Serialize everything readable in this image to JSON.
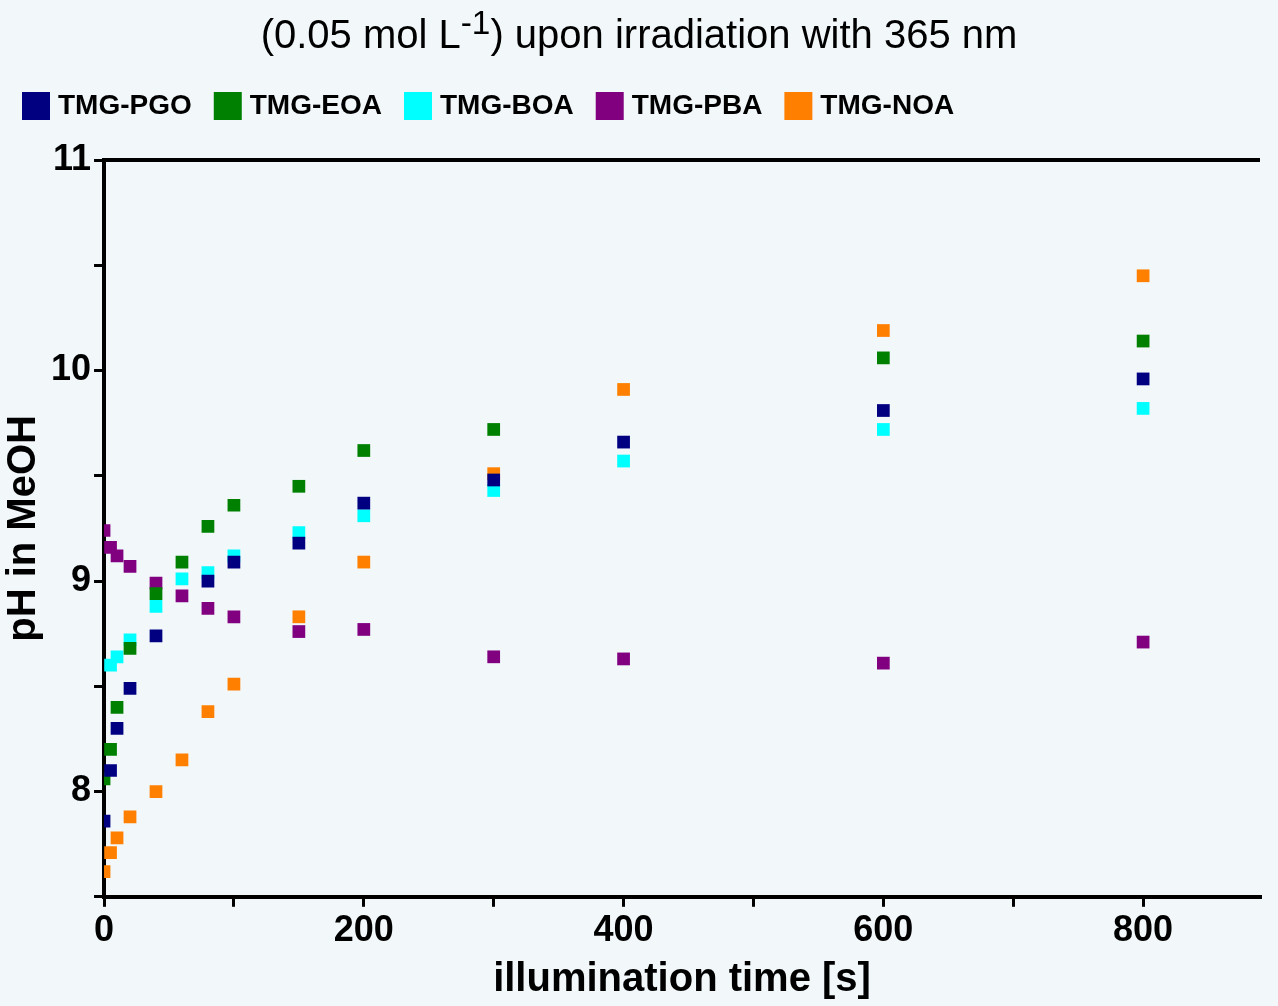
{
  "chart_data": {
    "type": "scatter",
    "title": "(0.05 mol L$^{-1}$) upon irradiation with 365 nm",
    "xlabel": "illumination time [s]",
    "ylabel": "pH in MeOH",
    "x": [
      0,
      5,
      10,
      20,
      40,
      60,
      80,
      100,
      150,
      200,
      300,
      400,
      600,
      800
    ],
    "series": [
      {
        "name": "TMG-PGO",
        "color": "#000080",
        "values": [
          7.86,
          8.1,
          8.3,
          8.49,
          8.74,
          null,
          9.0,
          9.09,
          9.18,
          9.37,
          9.48,
          9.66,
          9.81,
          9.96
        ]
      },
      {
        "name": "TMG-EOA",
        "color": "#008000",
        "values": [
          8.06,
          8.2,
          8.4,
          8.68,
          8.94,
          9.09,
          9.26,
          9.36,
          9.45,
          9.62,
          9.72,
          null,
          10.06,
          10.14
        ]
      },
      {
        "name": "TMG-BOA",
        "color": "#00ffff",
        "values": [
          null,
          8.6,
          8.64,
          8.72,
          8.88,
          9.01,
          9.04,
          9.12,
          9.23,
          9.31,
          9.43,
          9.57,
          9.72,
          9.82
        ]
      },
      {
        "name": "TMG-PBA",
        "color": "#800080",
        "values": [
          9.24,
          9.16,
          9.12,
          9.07,
          8.99,
          8.93,
          8.87,
          8.83,
          8.76,
          8.77,
          8.64,
          8.63,
          8.61,
          8.71
        ]
      },
      {
        "name": "TMG-NOA",
        "color": "#ff8000",
        "values": [
          7.62,
          7.71,
          7.78,
          7.88,
          8.0,
          8.15,
          8.38,
          8.51,
          8.83,
          9.09,
          9.51,
          9.91,
          10.19,
          10.45
        ]
      }
    ],
    "xlim": [
      0,
      890
    ],
    "xticks": [
      0,
      {
        "value": 100,
        "label": null
      },
      200,
      {
        "value": 300,
        "label": null
      },
      400,
      {
        "value": 500,
        "label": null
      },
      600,
      {
        "value": 700,
        "label": null
      },
      800
    ],
    "ylim": [
      7.5,
      11
    ],
    "yticks": [
      {
        "value": 7.5,
        "label": null
      },
      8,
      {
        "value": 8.5,
        "label": null
      },
      9,
      {
        "value": 9.5,
        "label": null
      },
      10,
      {
        "value": 10.5,
        "label": null
      },
      11
    ],
    "marker": "square",
    "legend": "top",
    "grid": false
  }
}
